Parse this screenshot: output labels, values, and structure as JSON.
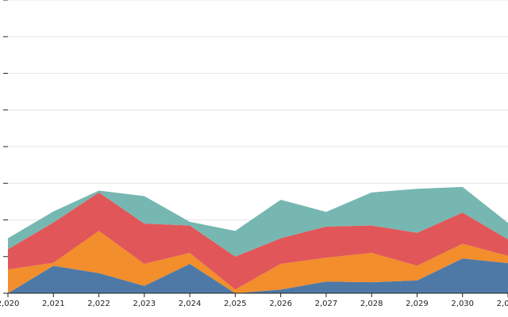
{
  "chart_data": {
    "type": "area",
    "stacked": true,
    "x": [
      2020,
      2021,
      2022,
      2023,
      2024,
      2025,
      2026,
      2027,
      2028,
      2029,
      2030,
      2031
    ],
    "x_tick_labels": [
      "2,020",
      "2,021",
      "2,022",
      "2,023",
      "2,024",
      "2,025",
      "2,026",
      "2,027",
      "2,028",
      "2,029",
      "2,030",
      "2,031"
    ],
    "ylim": [
      0,
      80
    ],
    "y_ticks": [
      0,
      10,
      20,
      30,
      40,
      50,
      60,
      70,
      80
    ],
    "grid": "horizontal",
    "legend": "none",
    "title": "",
    "xlabel": "",
    "ylabel": "",
    "series": [
      {
        "color": "#4e79a7",
        "values": [
          0,
          7.5,
          5.5,
          2,
          8,
          0,
          1,
          3.2,
          3,
          3.5,
          9.5,
          8.2
        ]
      },
      {
        "color": "#f28e2b",
        "values": [
          6.5,
          0.8,
          11.5,
          6,
          3,
          1,
          7,
          6.5,
          8,
          4,
          4,
          2
        ]
      },
      {
        "color": "#e15759",
        "values": [
          5.5,
          11,
          10.5,
          11,
          7.5,
          9,
          7,
          8.5,
          7.5,
          9,
          8.5,
          4.5
        ]
      },
      {
        "color": "#76b7b2",
        "values": [
          3,
          3,
          0.5,
          7.5,
          1,
          7,
          10.5,
          4,
          9,
          12,
          7,
          4.5
        ]
      }
    ]
  }
}
